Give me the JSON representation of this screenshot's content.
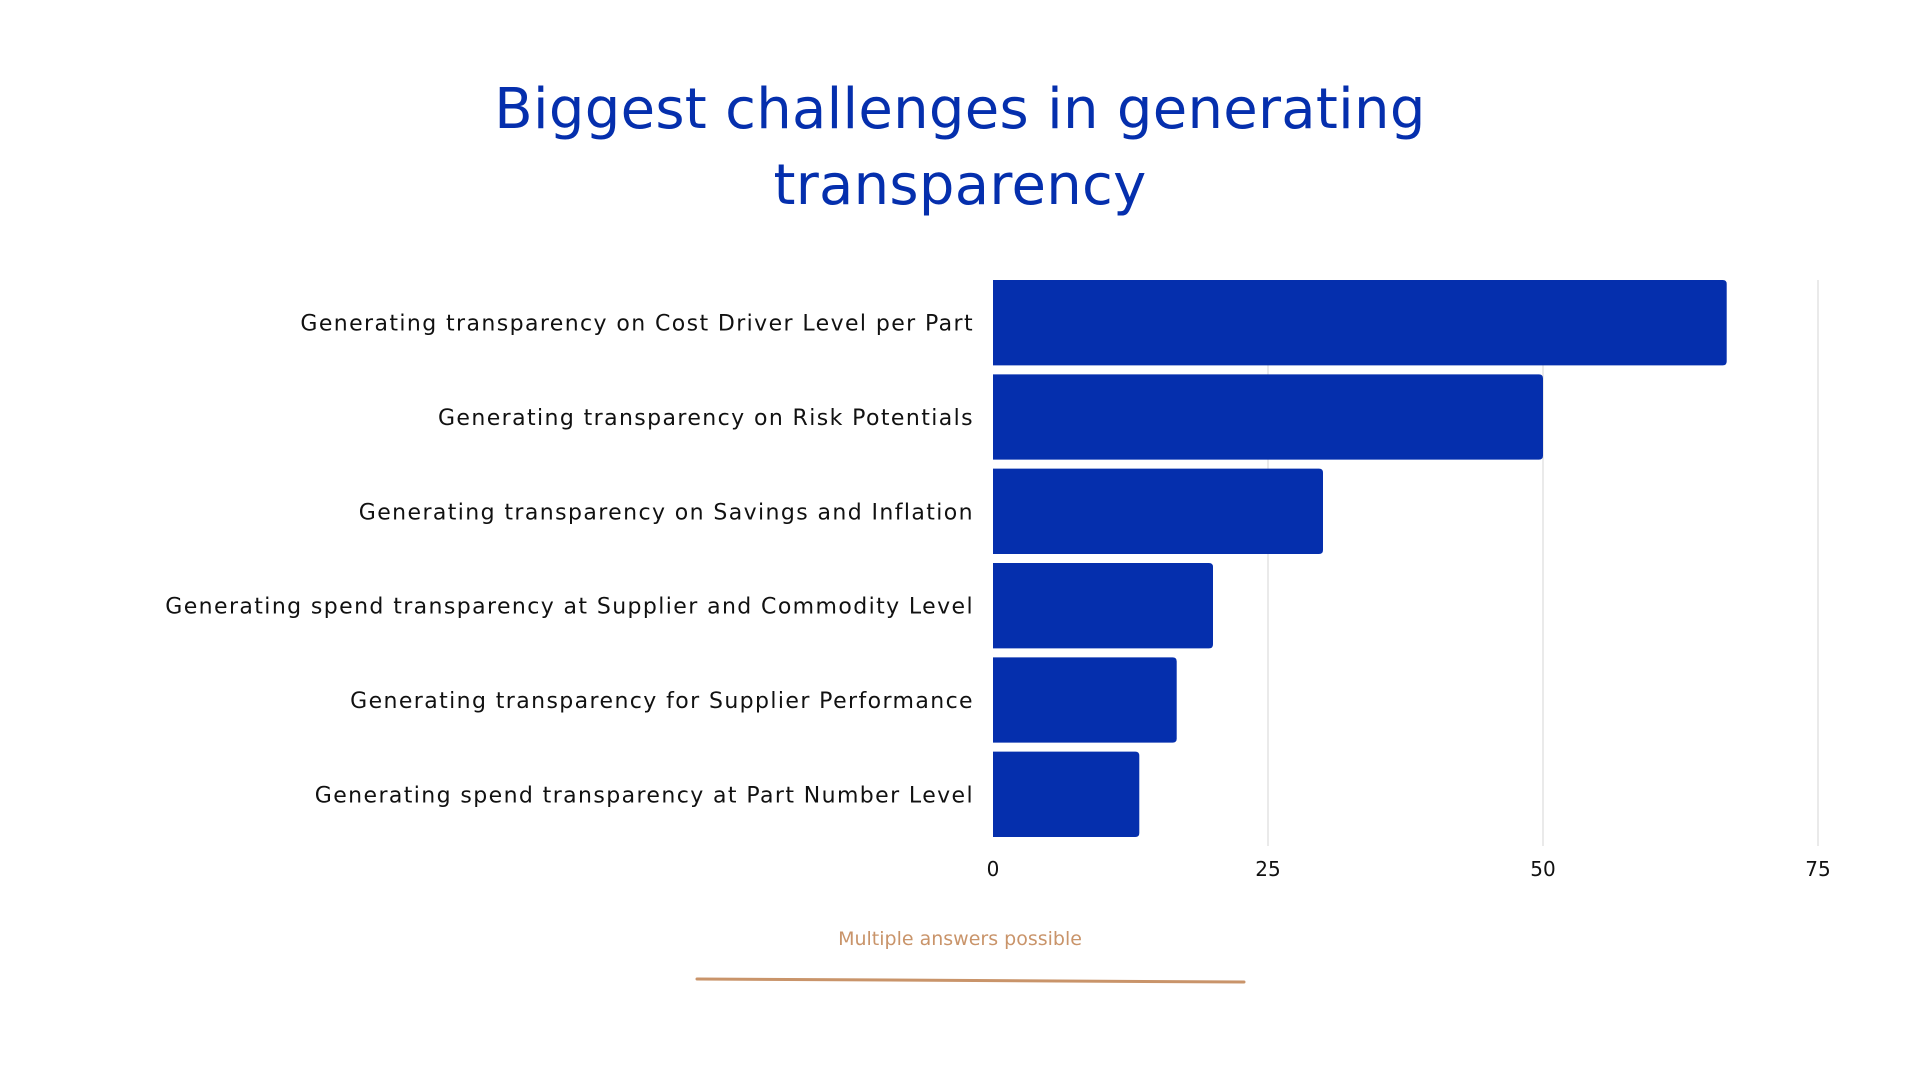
{
  "title": {
    "line1": "Biggest challenges in generating",
    "line2": "transparency"
  },
  "note": "Multiple answers possible",
  "colors": {
    "title": "#052fad",
    "bar": "#052fad",
    "grid": "#dddddd",
    "note": "#c9946a"
  },
  "chart_data": {
    "type": "bar",
    "orientation": "horizontal",
    "title": "Biggest challenges in generating transparency",
    "categories": [
      "Generating transparency on Cost Driver Level per Part",
      "Generating transparency on Risk Potentials",
      "Generating transparency on Savings and Inflation",
      "Generating spend transparency at Supplier and Commodity Level",
      "Generating transparency for Supplier Performance",
      "Generating spend transparency at Part Number Level"
    ],
    "values": [
      66.7,
      50,
      30,
      20,
      16.7,
      13.3
    ],
    "xlim": [
      0,
      75
    ],
    "xticks": [
      0,
      25,
      50,
      75
    ],
    "xlabel": "",
    "ylabel": "",
    "grid": true
  }
}
